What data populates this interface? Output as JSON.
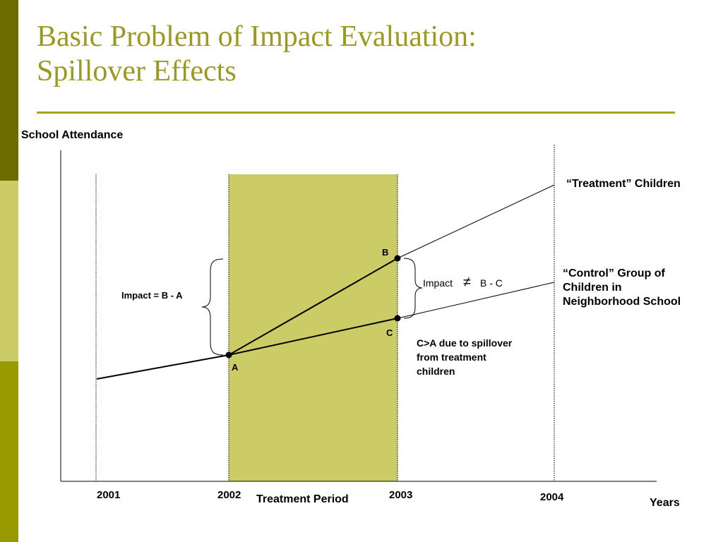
{
  "slide": {
    "title_line1": "Basic Problem of Impact Evaluation:",
    "title_line2": "Spillover Effects",
    "title_color": "#9a9a1f",
    "rule_color": "#a8a51a",
    "sidebar_colors": [
      "#6b6b00",
      "#cccc66",
      "#999900"
    ]
  },
  "chart_data": {
    "type": "line",
    "ylabel": "School Attendance",
    "xlabel": "Years",
    "x_ticks": [
      "2001",
      "2002",
      "2003",
      "2004"
    ],
    "shaded_region": {
      "from": "2002",
      "to": "2003",
      "label": "Treatment Period",
      "color": "#cccc66"
    },
    "series": [
      {
        "name": "“Treatment” Children"
      },
      {
        "name": "“Control” Group of Children in Neighborhood School",
        "name_lines": [
          "“Control” Group of",
          "Children in",
          "Neighborhood School"
        ]
      }
    ],
    "points": [
      {
        "label": "A",
        "x": "2002"
      },
      {
        "label": "B",
        "x": "2003"
      },
      {
        "label": "C",
        "x": "2003"
      }
    ],
    "annotations": {
      "impact_left": "Impact = B - A",
      "impact_right_prefix": "Impact",
      "impact_right_symbol": "≠",
      "impact_right_suffix": "B - C",
      "spillover_lines": [
        "C>A due to spillover",
        "from treatment",
        "children"
      ]
    }
  }
}
